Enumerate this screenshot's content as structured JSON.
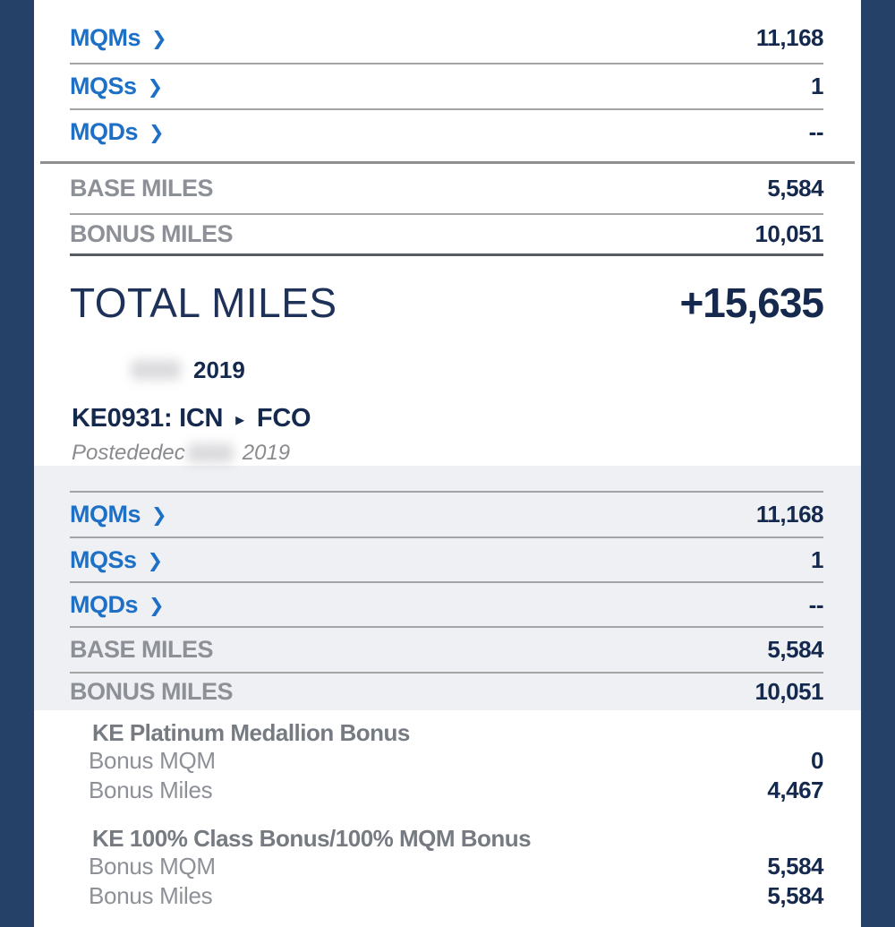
{
  "colors": {
    "side_bar": "#264168",
    "link_blue": "#1d70c6",
    "value_navy": "#14294d",
    "label_gray": "#8d9197",
    "panel_bg": "#eef0f4"
  },
  "top_summary": {
    "mq_rows": [
      {
        "label": "MQMs",
        "chevron": "❯",
        "value": "11,168"
      },
      {
        "label": "MQSs",
        "chevron": "❯",
        "value": "1"
      },
      {
        "label": "MQDs",
        "chevron": "❯",
        "value": "--"
      }
    ],
    "miles_rows": [
      {
        "label": "BASE MILES",
        "value": "5,584"
      },
      {
        "label": "BONUS MILES",
        "value": "10,051"
      }
    ],
    "total_label": "TOTAL MILES",
    "total_value": "+15,635"
  },
  "activity": {
    "date_year": "2019",
    "flight_number_origin": "KE0931: ICN",
    "flight_arrow": "▸",
    "flight_destination": "FCO",
    "posted_prefix": "Postededec",
    "posted_year": "2019",
    "mq_rows": [
      {
        "label": "MQMs",
        "chevron": "❯",
        "value": "11,168"
      },
      {
        "label": "MQSs",
        "chevron": "❯",
        "value": "1"
      },
      {
        "label": "MQDs",
        "chevron": "❯",
        "value": "--"
      }
    ],
    "miles_rows": [
      {
        "label": "BASE MILES",
        "value": "5,584"
      },
      {
        "label": "BONUS MILES",
        "value": "10,051"
      }
    ],
    "bonuses": [
      {
        "title": "KE Platinum Medallion Bonus",
        "rows": [
          {
            "label": "Bonus MQM",
            "value": "0"
          },
          {
            "label": "Bonus Miles",
            "value": "4,467"
          }
        ]
      },
      {
        "title": "KE 100% Class Bonus/100% MQM Bonus",
        "rows": [
          {
            "label": "Bonus MQM",
            "value": "5,584"
          },
          {
            "label": "Bonus Miles",
            "value": "5,584"
          }
        ]
      }
    ]
  }
}
